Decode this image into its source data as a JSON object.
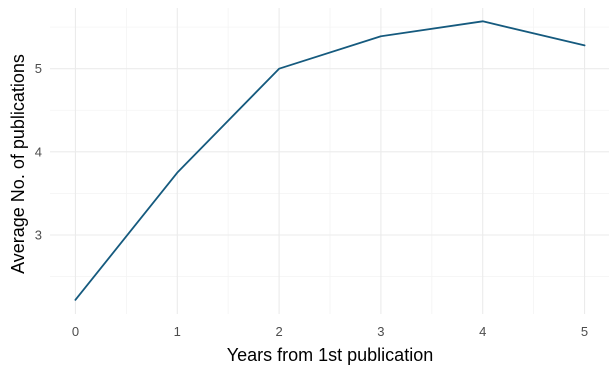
{
  "chart_data": {
    "type": "line",
    "title": "",
    "xlabel": "Years from 1st publication",
    "ylabel": "Average No. of publications",
    "x": [
      0,
      1,
      2,
      3,
      4,
      5
    ],
    "series": [
      {
        "values": [
          2.22,
          3.75,
          5.0,
          5.39,
          5.57,
          5.28
        ],
        "color": "#155a7e"
      }
    ],
    "x_ticks": [
      0,
      1,
      2,
      3,
      4,
      5
    ],
    "y_ticks": [
      3,
      4,
      5
    ],
    "xlim": [
      -0.25,
      5.25
    ],
    "ylim": [
      2.05,
      5.73
    ],
    "grid": true,
    "legend": "none"
  }
}
